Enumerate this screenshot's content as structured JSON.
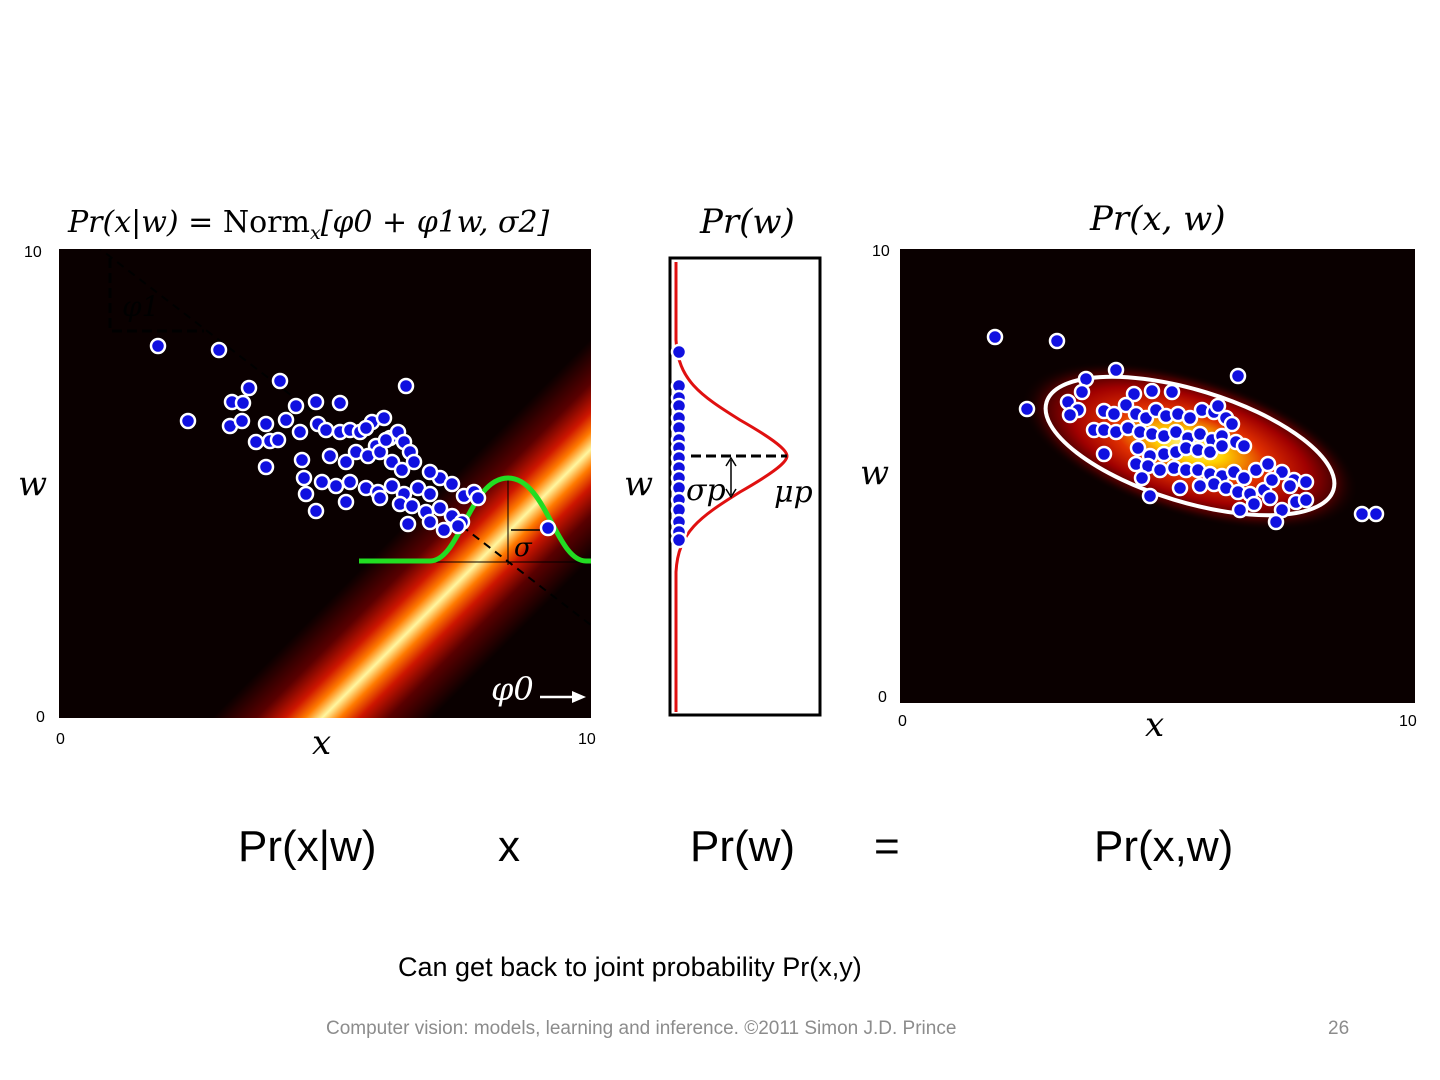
{
  "panels": {
    "likelihood": {
      "title": "Pr(x|w) = Norm_x[φ0 + φ1 w, σ²]",
      "title_parts": {
        "pr": "Pr(x|w) = ",
        "norm": "Norm",
        "sub": "x",
        "args": "[φ0 + φ1w, σ2]"
      },
      "xlabel": "x",
      "ylabel": "w",
      "xticks": [
        "0",
        "10"
      ],
      "yticks": [
        "0",
        "10"
      ],
      "annotations": {
        "phi1": "φ1",
        "phi0": "φ0",
        "sigma": "σ"
      }
    },
    "prior": {
      "title": "Pr(w)",
      "ylabel": "w",
      "annotations": {
        "sigma_p": "σp",
        "mu_p": "μp"
      }
    },
    "joint": {
      "title": "Pr(x, w)",
      "xlabel": "x",
      "ylabel": "w",
      "xticks": [
        "0",
        "10"
      ],
      "yticks": [
        "0",
        "10"
      ]
    }
  },
  "colors": {
    "points": "#1010e0",
    "normal_curve": "#22dd22",
    "prior_curve": "#e01010",
    "ellipse": "#ffffff"
  },
  "equation": {
    "term1": "Pr(x|w)",
    "times": "x",
    "term2": "Pr(w)",
    "equals": "=",
    "term3": "Pr(x,w)"
  },
  "caption": "Can get back to joint probability Pr(x,y)",
  "footer": {
    "text": "Computer vision: models, learning and inference.  ©2011 Simon J.D. Prince",
    "page": "26"
  }
}
